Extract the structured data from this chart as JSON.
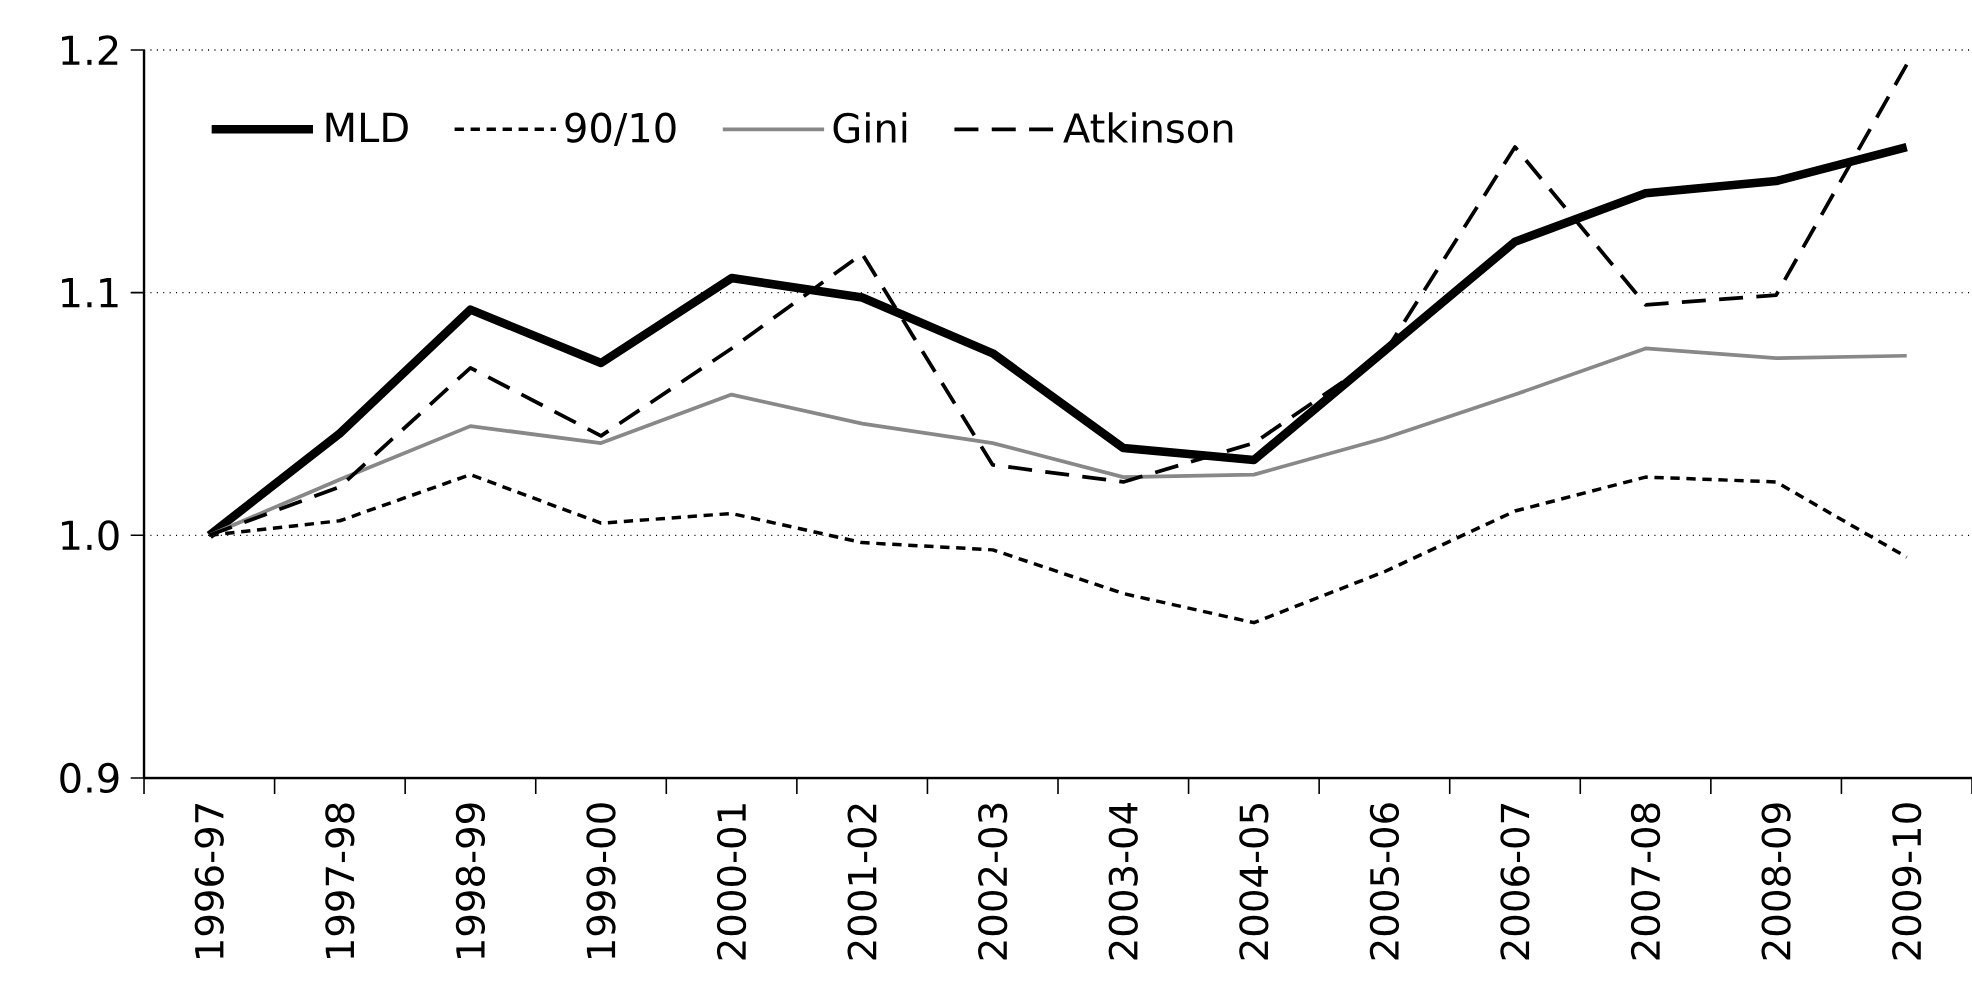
{
  "chart_data": {
    "type": "line",
    "categories": [
      "1996-97",
      "1997-98",
      "1998-99",
      "1999-00",
      "2000-01",
      "2001-02",
      "2002-03",
      "2003-04",
      "2004-05",
      "2005-06",
      "2006-07",
      "2007-08",
      "2008-09",
      "2009-10"
    ],
    "series": [
      {
        "name": "MLD",
        "color": "#000000",
        "line_style": "solid",
        "values": [
          1.0,
          1.042,
          1.093,
          1.071,
          1.106,
          1.098,
          1.075,
          1.036,
          1.031,
          1.076,
          1.121,
          1.141,
          1.146,
          1.16
        ]
      },
      {
        "name": "90/10",
        "color": "#000000",
        "line_style": "dotted",
        "values": [
          1.0,
          1.006,
          1.025,
          1.005,
          1.009,
          0.997,
          0.994,
          0.976,
          0.964,
          0.985,
          1.01,
          1.024,
          1.022,
          0.991
        ]
      },
      {
        "name": "Gini",
        "color": "#888888",
        "line_style": "solid",
        "values": [
          1.0,
          1.023,
          1.045,
          1.038,
          1.058,
          1.046,
          1.038,
          1.024,
          1.025,
          1.04,
          1.058,
          1.077,
          1.073,
          1.074
        ]
      },
      {
        "name": "Atkinson",
        "color": "#000000",
        "line_style": "dashed",
        "values": [
          1.0,
          1.02,
          1.069,
          1.041,
          1.077,
          1.116,
          1.029,
          1.022,
          1.038,
          1.075,
          1.16,
          1.095,
          1.099,
          1.194
        ]
      }
    ],
    "ylim": [
      0.9,
      1.2
    ],
    "yticks": [
      {
        "value": 0.9,
        "label": "0.9"
      },
      {
        "value": 1.0,
        "label": "1.0"
      },
      {
        "value": 1.1,
        "label": "1.1"
      },
      {
        "value": 1.2,
        "label": "1.2"
      }
    ],
    "grid": "y",
    "legend": "top left",
    "marker": "none"
  }
}
